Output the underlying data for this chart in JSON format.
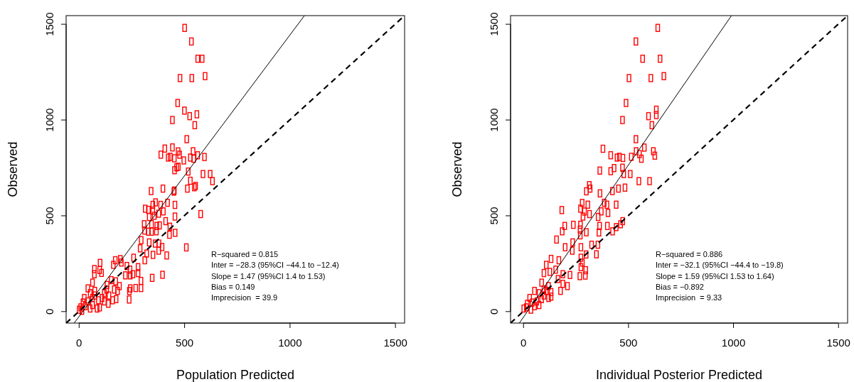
{
  "chart_data": [
    {
      "type": "scatter",
      "xlabel": "Population Predicted",
      "ylabel": "Observed",
      "xlim": [
        -60,
        1545
      ],
      "ylim": [
        -60,
        1545
      ],
      "xticks": [
        0,
        500,
        1000,
        1500
      ],
      "yticks": [
        0,
        500,
        1000,
        1500
      ],
      "grid": false,
      "annotations": [
        "R−squared = 0.815",
        "Inter = −28.3 (95%CI −44.1 to −12.4)",
        "Slope = 1.47 (95%CI 1.4 to 1.53)",
        "Bias = 0.149",
        "Imprecision  = 39.9"
      ],
      "series": [
        {
          "color": "#ff0000",
          "marker": "square",
          "x": [
            502,
            534,
            564,
            585,
            480,
            536,
            599,
            469,
            501,
            526,
            560,
            444,
            550,
            512,
            408,
            444,
            389,
            424,
            434,
            453,
            471,
            478,
            498,
            529,
            542,
            545,
            564,
            596,
            454,
            464,
            472,
            519,
            589,
            623,
            634,
            529,
            515,
            548,
            554,
            343,
            399,
            451,
            453,
            364,
            351,
            388,
            421,
            456,
            315,
            330,
            351,
            401,
            379,
            334,
            358,
            456,
            578,
            310,
            345,
            370,
            383,
            412,
            432,
            312,
            330,
            345,
            368,
            430,
            457,
            296,
            334,
            362,
            380,
            395,
            291,
            322,
            352,
            379,
            417,
            510,
            260,
            313,
            173,
            197,
            202,
            164,
            101,
            74,
            99,
            74,
            108,
            228,
            243,
            281,
            281,
            221,
            244,
            257,
            348,
            397,
            295,
            270,
            244,
            295,
            240,
            239,
            65,
            134,
            154,
            175,
            193,
            168,
            184,
            160,
            177,
            140,
            43,
            54,
            65,
            76,
            20,
            9,
            31,
            87,
            99,
            2,
            43,
            110,
            121,
            76,
            54,
            15,
            26,
            65,
            93,
            121,
            143,
            132
          ],
          "values": [
            1481,
            1410,
            1320,
            1320,
            1219,
            1219,
            1229,
            1089,
            1049,
            1020,
            1030,
            1000,
            973,
            900,
            851,
            857,
            819,
            804,
            808,
            800,
            836,
            819,
            789,
            804,
            837,
            798,
            816,
            807,
            738,
            753,
            756,
            731,
            718,
            718,
            681,
            683,
            642,
            649,
            656,
            629,
            642,
            626,
            632,
            570,
            557,
            557,
            568,
            557,
            537,
            531,
            527,
            523,
            511,
            494,
            500,
            496,
            509,
            456,
            456,
            447,
            450,
            472,
            443,
            423,
            417,
            417,
            419,
            401,
            411,
            373,
            361,
            355,
            355,
            337,
            330,
            303,
            296,
            318,
            293,
            335,
            281,
            268,
            268,
            274,
            256,
            244,
            254,
            222,
            217,
            195,
            202,
            238,
            219,
            232,
            201,
            189,
            189,
            195,
            176,
            192,
            160,
            123,
            121,
            123,
            108,
            63,
            151,
            139,
            164,
            158,
            133,
            115,
            108,
            59,
            65,
            41,
            121,
            96,
            71,
            84,
            47,
            22,
            28,
            16,
            22,
            10,
            53,
            71,
            96,
            108,
            16,
            4,
            71,
            34,
            59,
            53,
            84,
            115
          ]
        },
        {
          "type": "line",
          "color": "#000000",
          "line_style": "solid",
          "marker": "none",
          "x": [
            -22,
            1070
          ],
          "values": [
            -60,
            1545
          ]
        },
        {
          "type": "line",
          "color": "#000000",
          "line_style": "dashed",
          "marker": "none",
          "x": [
            -60,
            1545
          ],
          "values": [
            -60,
            1545
          ]
        }
      ]
    },
    {
      "type": "scatter",
      "xlabel": "Individual Posterior Predicted",
      "ylabel": "Observed",
      "xlim": [
        -60,
        1545
      ],
      "ylim": [
        -60,
        1545
      ],
      "xticks": [
        0,
        500,
        1000,
        1500
      ],
      "yticks": [
        0,
        500,
        1000,
        1500
      ],
      "grid": false,
      "annotations": [
        "R−squared = 0.886",
        "Inter = −32.1 (95%CI −44.4 to −19.8)",
        "Slope = 1.59 (95%CI 1.53 to 1.64)",
        "Bias = −0.892",
        "Imprecision  = 9.33"
      ],
      "series": [
        {
          "color": "#ff0000",
          "marker": "square",
          "x": [
            641,
            537,
            569,
            652,
            504,
            608,
            670,
            490,
            634,
            634,
            597,
            613,
            473,
            537,
            380,
            577,
            620,
            627,
            538,
            417,
            447,
            458,
            475,
            515,
            554,
            563,
            365,
            417,
            433,
            473,
            479,
            510,
            551,
            602,
            315,
            301,
            319,
            366,
            425,
            454,
            485,
            184,
            281,
            308,
            273,
            292,
            285,
            316,
            386,
            399,
            443,
            372,
            357,
            404,
            198,
            186,
            159,
            239,
            273,
            271,
            301,
            364,
            361,
            401,
            426,
            443,
            464,
            474,
            272,
            200,
            236,
            234,
            275,
            326,
            356,
            349,
            300,
            275,
            282,
            275,
            298,
            270,
            296,
            133,
            170,
            110,
            99,
            127,
            155,
            189,
            223,
            166,
            189,
            178,
            211,
            88,
            121,
            54,
            76,
            99,
            121,
            31,
            20,
            43,
            65,
            88,
            110,
            133,
            3,
            15,
            54,
            76,
            37,
            99,
            133
          ],
          "values": [
            1481,
            1410,
            1320,
            1320,
            1219,
            1219,
            1229,
            1089,
            1054,
            1026,
            1020,
            973,
            1000,
            900,
            850,
            856,
            837,
            814,
            837,
            816,
            804,
            808,
            802,
            808,
            822,
            798,
            736,
            733,
            749,
            751,
            718,
            718,
            681,
            681,
            660,
            628,
            642,
            617,
            629,
            642,
            647,
            530,
            567,
            558,
            537,
            522,
            496,
            509,
            568,
            558,
            558,
            523,
            494,
            515,
            447,
            419,
            376,
            453,
            453,
            428,
            414,
            447,
            413,
            447,
            419,
            441,
            456,
            472,
            398,
            336,
            361,
            318,
            336,
            349,
            349,
            299,
            298,
            281,
            256,
            232,
            216,
            185,
            188,
            275,
            268,
            244,
            201,
            207,
            219,
            195,
            191,
            170,
            145,
            108,
            133,
            151,
            133,
            108,
            96,
            84,
            71,
            71,
            41,
            47,
            53,
            65,
            108,
            102,
            16,
            22,
            28,
            34,
            10,
            115,
            78
          ]
        },
        {
          "type": "line",
          "color": "#000000",
          "line_style": "solid",
          "marker": "none",
          "x": [
            -18,
            992
          ],
          "values": [
            -60,
            1545
          ]
        },
        {
          "type": "line",
          "color": "#000000",
          "line_style": "dashed",
          "marker": "none",
          "x": [
            -60,
            1545
          ],
          "values": [
            -60,
            1545
          ]
        }
      ]
    }
  ]
}
